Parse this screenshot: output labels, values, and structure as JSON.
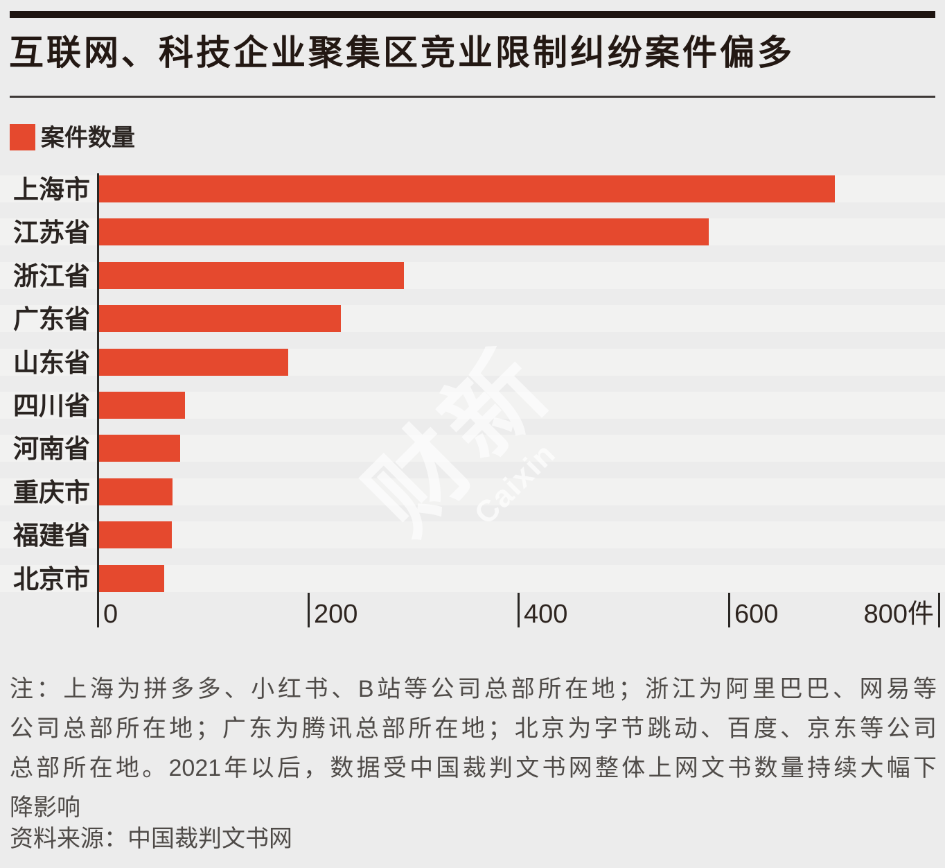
{
  "header": {
    "title": "互联网、科技企业聚集区竞业限制纠纷案件偏多"
  },
  "legend": {
    "label": "案件数量"
  },
  "chart_data": {
    "type": "bar",
    "orientation": "horizontal",
    "title": "互联网、科技企业聚集区竞业限制纠纷案件偏多",
    "series_name": "案件数量",
    "categories": [
      "上海市",
      "江苏省",
      "浙江省",
      "广东省",
      "山东省",
      "四川省",
      "河南省",
      "重庆市",
      "福建省",
      "北京市"
    ],
    "values": [
      700,
      580,
      290,
      230,
      180,
      82,
      77,
      70,
      69,
      62
    ],
    "xlim": [
      0,
      800
    ],
    "x_ticks": [
      {
        "value": 0,
        "label": "0"
      },
      {
        "value": 200,
        "label": "200"
      },
      {
        "value": 400,
        "label": "400"
      },
      {
        "value": 600,
        "label": "600"
      },
      {
        "value": 800,
        "label": "800件"
      }
    ],
    "unit": "件",
    "grid": false,
    "legend_position": "top-left",
    "sort": "descending"
  },
  "watermark": {
    "cn": "财新",
    "en": "Caixin"
  },
  "notes": {
    "lines": [
      "注：上海为拼多多、小红书、B站等公司总部所在地；浙江为阿里巴巴、网易等",
      "公司总部所在地；广东为腾讯总部所在地；北京为字节跳动、百度、京东等公司",
      "总部所在地。2021年以后，数据受中国裁判文书网整体上网文书数量持续大幅下",
      "降影响"
    ]
  },
  "source": {
    "label": "资料来源：中国裁判文书网"
  },
  "colors": {
    "bar": "#e5492e",
    "background": "#ececec",
    "row_band": "#f2f2f1",
    "top_bar": "#1e1511",
    "title_ink": "#231813",
    "label_ink": "#2a2421",
    "axis_ink": "#2a2724",
    "note_gray": "#4f4b48"
  }
}
